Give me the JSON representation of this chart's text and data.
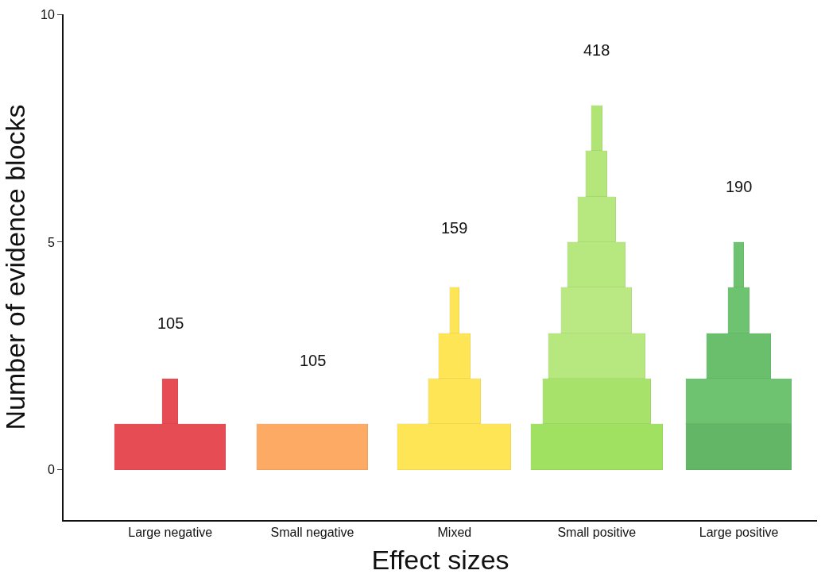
{
  "chart_data": {
    "type": "bar",
    "stacked": true,
    "xlabel": "Effect sizes",
    "ylabel": "Number of evidence blocks",
    "categories": [
      "Large negative",
      "Small negative",
      "Mixed",
      "Small positive",
      "Large positive"
    ],
    "series": [
      {
        "values": [
          1,
          1,
          1,
          1,
          1
        ],
        "colors": [
          "#e5434a",
          "#fda65c",
          "#fee44e",
          "#9be05a",
          "#5bb35e"
        ]
      },
      {
        "values": [
          1,
          null,
          1,
          1,
          1
        ],
        "colors": [
          "#e5434a",
          "#fda65c",
          "#fee44e",
          "#a3e263",
          "#66c068"
        ]
      },
      {
        "values": [
          null,
          null,
          1,
          1,
          1
        ],
        "colors": [
          "#e5434a",
          "#fda65c",
          "#fee44e",
          "#b4e77a",
          "#63bc65"
        ]
      },
      {
        "values": [
          null,
          null,
          1,
          1,
          1
        ],
        "colors": [
          "#e5434a",
          "#fda65c",
          "#fee44e",
          "#b7e87d",
          "#66c068"
        ]
      },
      {
        "values": [
          null,
          null,
          null,
          1,
          1
        ],
        "colors": [
          "#e5434a",
          "#fda65c",
          "#fee44e",
          "#b4e77a",
          "#66c068"
        ]
      },
      {
        "values": [
          null,
          null,
          null,
          1,
          null
        ],
        "colors": [
          "#e5434a",
          "#fda65c",
          "#fee44e",
          "#b4e77a",
          "#66c068"
        ]
      },
      {
        "values": [
          null,
          null,
          null,
          1,
          null
        ],
        "colors": [
          "#e5434a",
          "#fda65c",
          "#fee44e",
          "#b0e574",
          "#66c068"
        ]
      },
      {
        "values": [
          null,
          null,
          null,
          1,
          null
        ],
        "colors": [
          "#e5434a",
          "#fda65c",
          "#fee44e",
          "#ace46e",
          "#66c068"
        ]
      }
    ],
    "ylim": [
      -1.1,
      10
    ],
    "yticks": [
      0,
      5,
      10
    ],
    "annotations": [
      "105",
      "105",
      "159",
      "418",
      "190"
    ]
  }
}
